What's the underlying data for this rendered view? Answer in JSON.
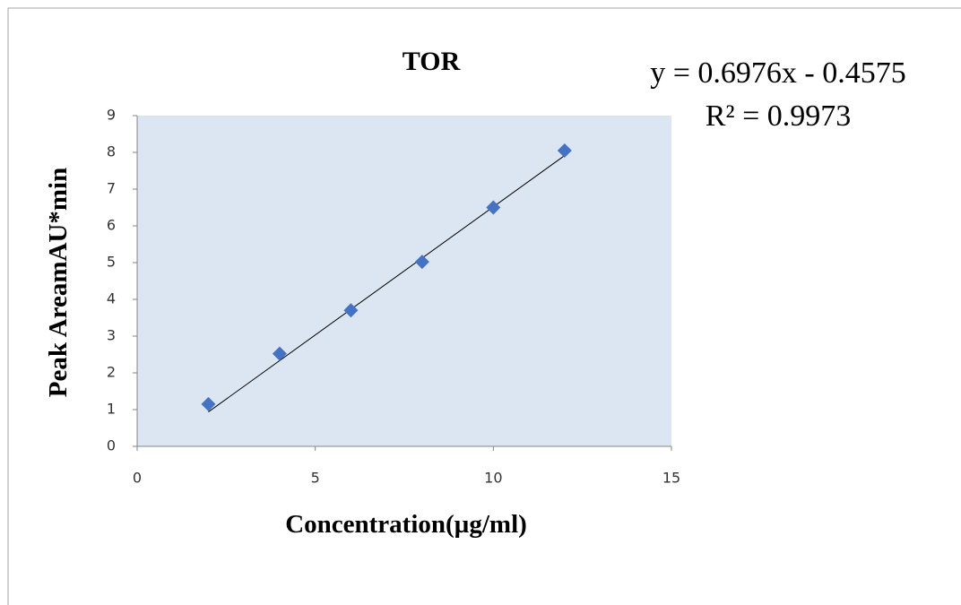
{
  "chart_data": {
    "type": "scatter",
    "title": "TOR",
    "x_label": "Concentration(µg/ml)",
    "y_label": "Peak AreamAU*min",
    "equation": "y = 0.6976x - 0.4575",
    "r_squared": "R² = 0.9973",
    "trendline": {
      "slope": 0.6976,
      "intercept": -0.4575
    },
    "x": [
      2,
      4,
      6,
      8,
      10,
      12
    ],
    "series": [
      {
        "name": "TOR",
        "color": "#4472c4",
        "values": [
          1.15,
          2.52,
          3.7,
          5.02,
          6.5,
          8.05
        ]
      }
    ],
    "xlim": [
      0,
      15
    ],
    "xticks": [
      0,
      5,
      10,
      15
    ],
    "ylim": [
      0,
      9
    ],
    "yticks": [
      0,
      1,
      2,
      3,
      4,
      5,
      6,
      7,
      8,
      9
    ],
    "plot_background": "#dce6f2"
  }
}
